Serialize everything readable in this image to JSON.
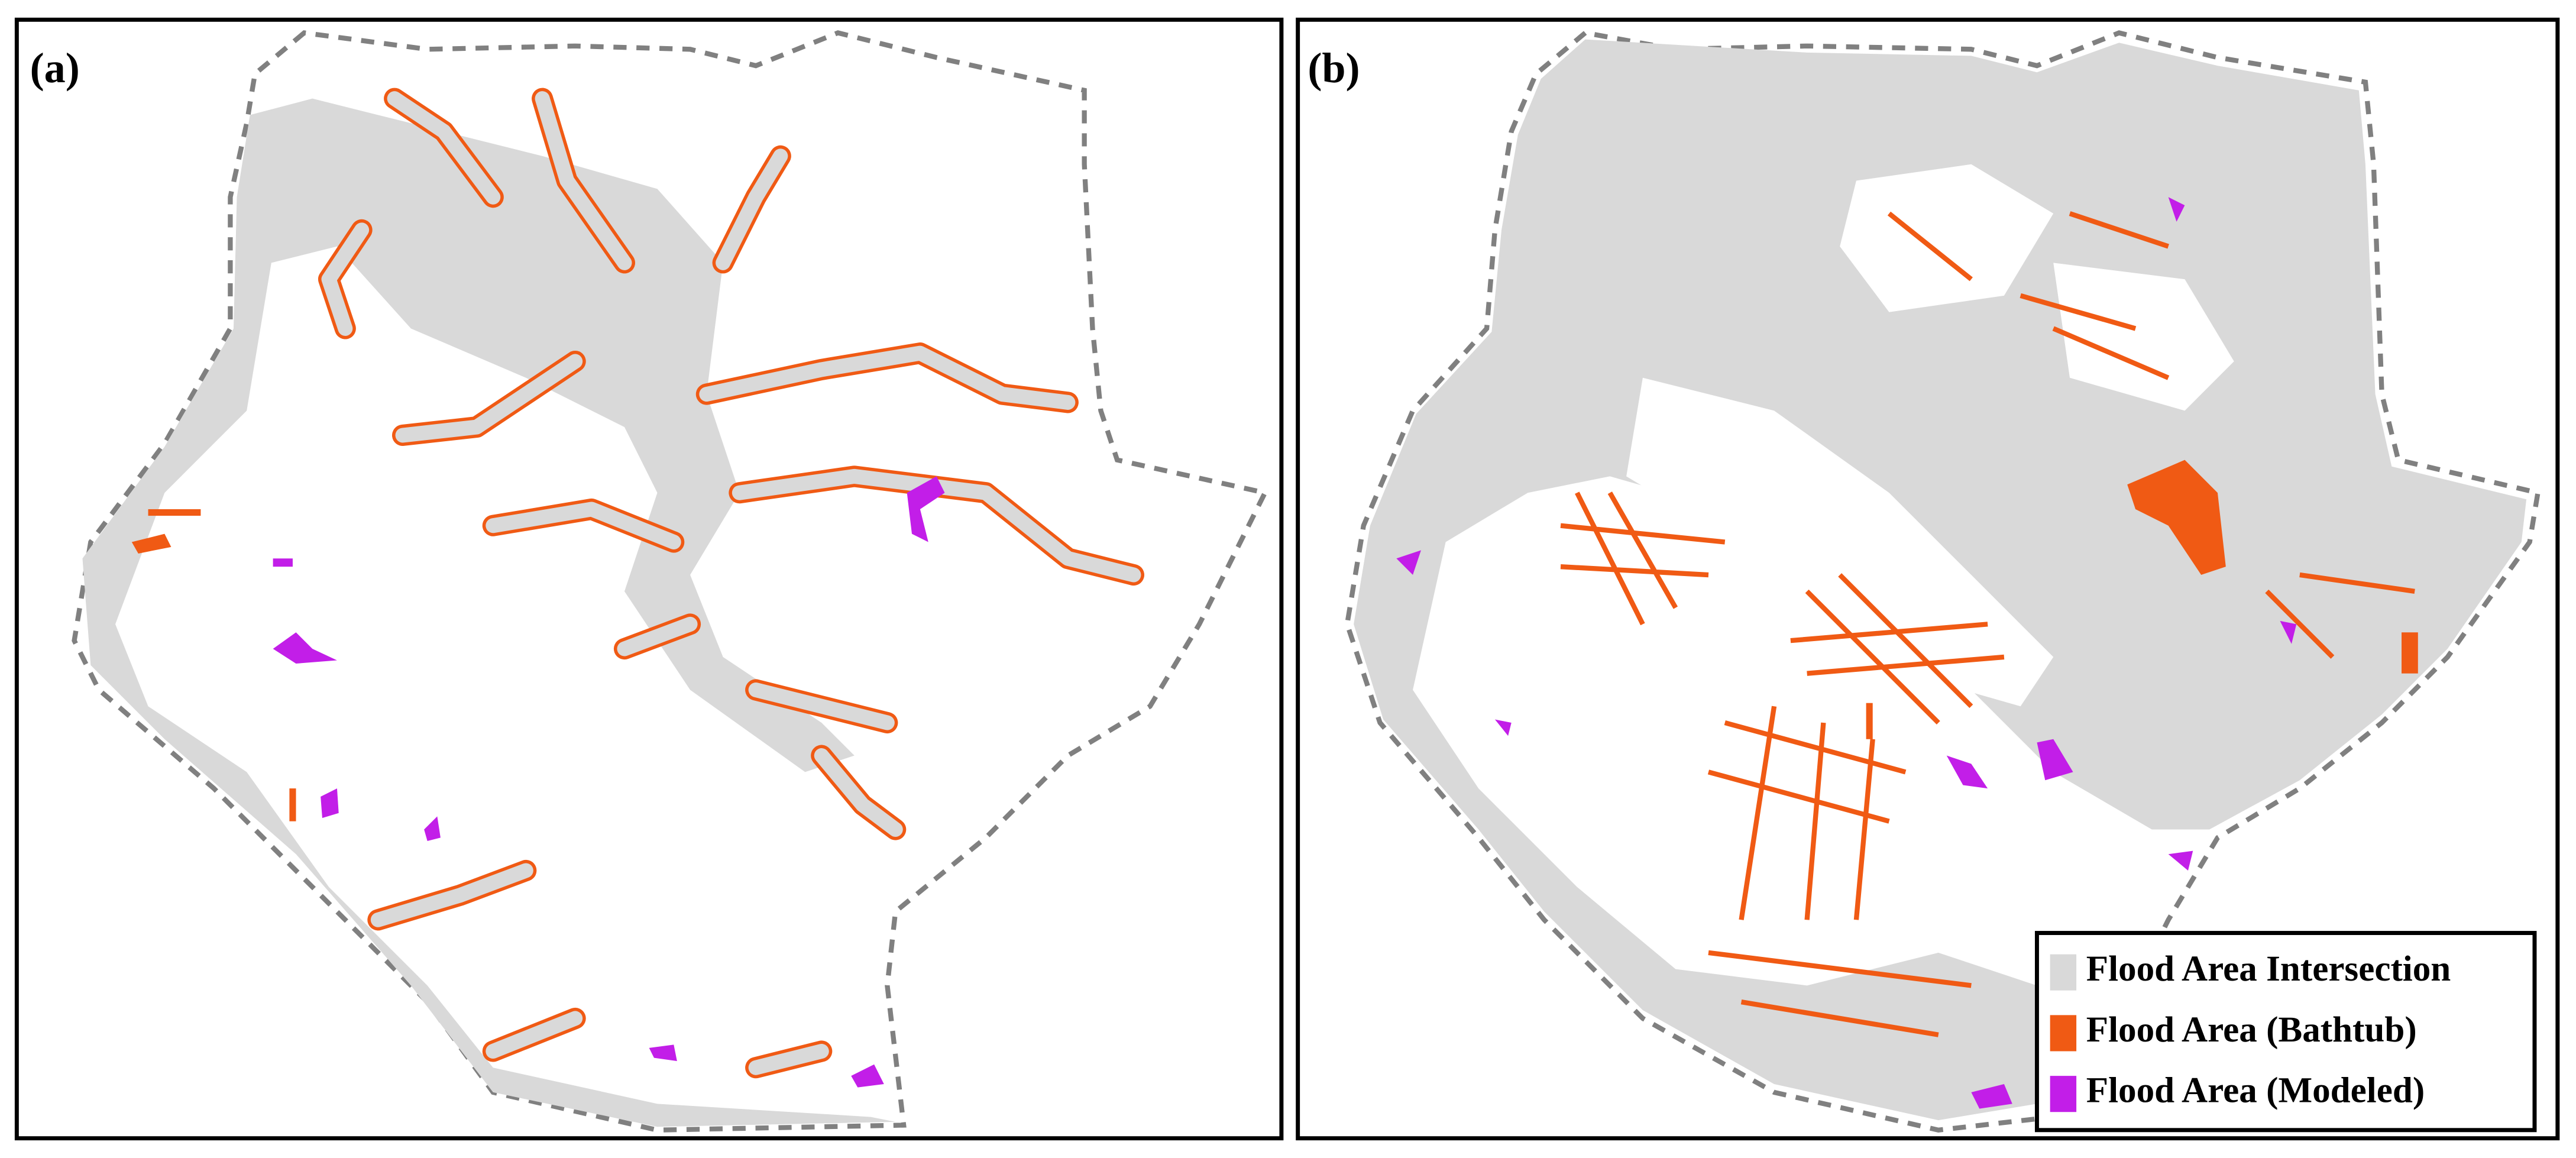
{
  "panels": [
    {
      "label": "(a)"
    },
    {
      "label": "(b)"
    }
  ],
  "legend": {
    "items": [
      {
        "label": "Flood Area Intersection",
        "color": "#d9d9d9"
      },
      {
        "label": "Flood Area (Bathtub)",
        "color": "#f05a14"
      },
      {
        "label": "Flood Area (Modeled)",
        "color": "#c21ee8"
      }
    ]
  }
}
